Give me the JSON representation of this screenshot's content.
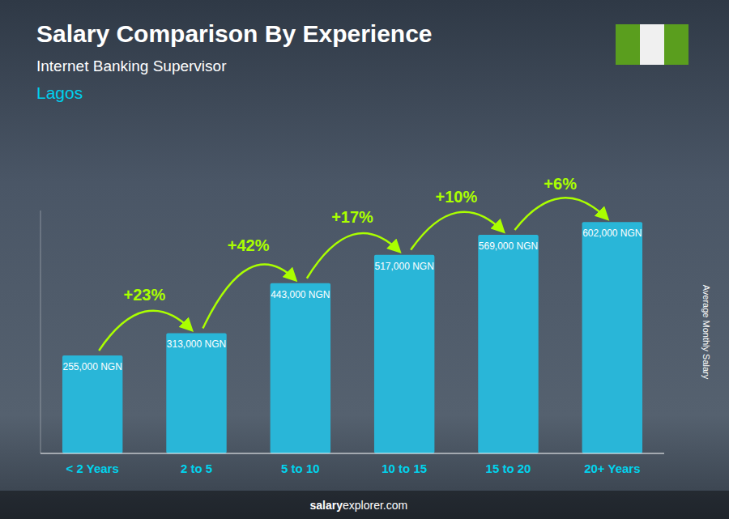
{
  "chart_data": {
    "type": "bar",
    "title": "Salary Comparison By Experience",
    "subtitle": "Internet Banking Supervisor",
    "city": "Lagos",
    "ylabel": "Average Monthly Salary",
    "footer_bold": "salary",
    "footer_normal": "explorer.com",
    "categories": [
      "< 2 Years",
      "2 to 5",
      "5 to 10",
      "10 to 15",
      "15 to 20",
      "20+ Years"
    ],
    "values": [
      255000,
      313000,
      443000,
      517000,
      569000,
      602000
    ],
    "value_labels": [
      "255,000 NGN",
      "313,000 NGN",
      "443,000 NGN",
      "517,000 NGN",
      "569,000 NGN",
      "602,000 NGN"
    ],
    "annotations": [
      null,
      "+23%",
      "+42%",
      "+17%",
      "+10%",
      "+6%"
    ],
    "color": "#29b6d8",
    "ylim": [
      0,
      632100
    ],
    "data_labels": true,
    "tick_labels": "x",
    "grid": false
  }
}
